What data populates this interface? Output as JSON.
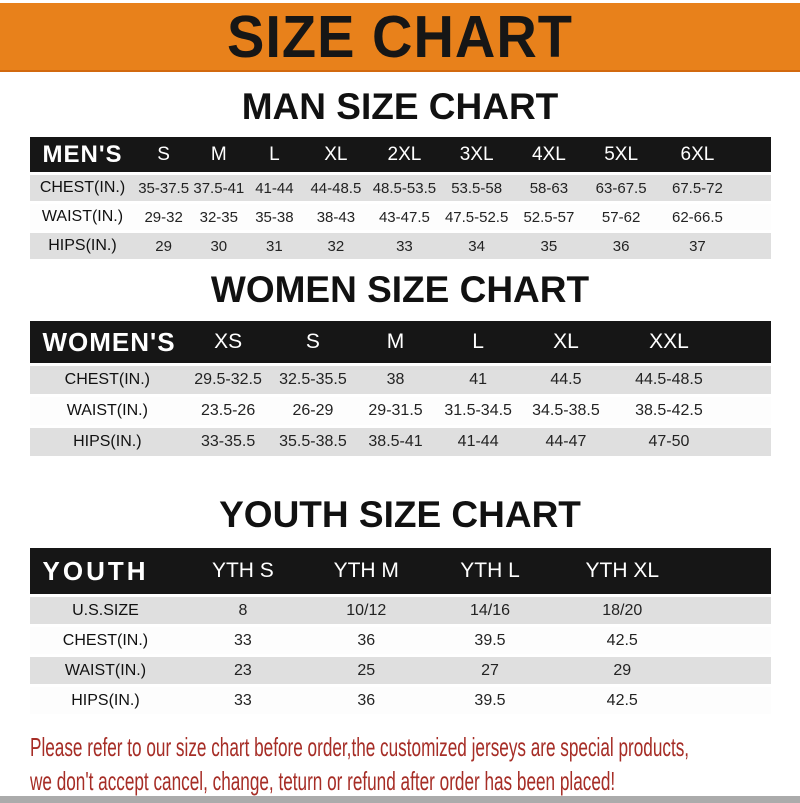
{
  "banner": {
    "title": "SIZE CHART"
  },
  "men": {
    "heading": "MAN SIZE CHART",
    "corner_label": "MEN'S",
    "columns": [
      "S",
      "M",
      "L",
      "XL",
      "2XL",
      "3XL",
      "4XL",
      "5XL",
      "6XL"
    ],
    "rows": [
      {
        "label": "CHEST(IN.)",
        "values": [
          "35-37.5",
          "37.5-41",
          "41-44",
          "44-48.5",
          "48.5-53.5",
          "53.5-58",
          "58-63",
          "63-67.5",
          "67.5-72"
        ]
      },
      {
        "label": "WAIST(IN.)",
        "values": [
          "29-32",
          "32-35",
          "35-38",
          "38-43",
          "43-47.5",
          "47.5-52.5",
          "52.5-57",
          "57-62",
          "62-66.5"
        ]
      },
      {
        "label": "HIPS(IN.)",
        "values": [
          "29",
          "30",
          "31",
          "32",
          "33",
          "34",
          "35",
          "36",
          "37"
        ]
      }
    ]
  },
  "women": {
    "heading": "WOMEN SIZE CHART",
    "corner_label": "WOMEN'S",
    "columns": [
      "XS",
      "S",
      "M",
      "L",
      "XL",
      "XXL"
    ],
    "rows": [
      {
        "label": "CHEST(IN.)",
        "values": [
          "29.5-32.5",
          "32.5-35.5",
          "38",
          "41",
          "44.5",
          "44.5-48.5"
        ]
      },
      {
        "label": "WAIST(IN.)",
        "values": [
          "23.5-26",
          "26-29",
          "29-31.5",
          "31.5-34.5",
          "34.5-38.5",
          "38.5-42.5"
        ]
      },
      {
        "label": "HIPS(IN.)",
        "values": [
          "33-35.5",
          "35.5-38.5",
          "38.5-41",
          "41-44",
          "44-47",
          "47-50"
        ]
      }
    ]
  },
  "youth": {
    "heading": "YOUTH SIZE CHART",
    "corner_label": "YOUTH",
    "columns": [
      "YTH S",
      "YTH M",
      "YTH L",
      "YTH XL"
    ],
    "rows": [
      {
        "label": "U.S.SIZE",
        "values": [
          "8",
          "10/12",
          "14/16",
          "18/20"
        ]
      },
      {
        "label": "CHEST(IN.)",
        "values": [
          "33",
          "36",
          "39.5",
          "42.5"
        ]
      },
      {
        "label": "WAIST(IN.)",
        "values": [
          "23",
          "25",
          "27",
          "29"
        ]
      },
      {
        "label": "HIPS(IN.)",
        "values": [
          "33",
          "36",
          "39.5",
          "42.5"
        ]
      }
    ]
  },
  "footer": {
    "line1": "Please refer to our size chart before order,the customized jerseys are special products,",
    "line2": "we don't accept cancel, change, teturn or refund after order has been placed!"
  },
  "colors": {
    "banner_orange": "#E8811B",
    "banner_text": "#161616",
    "header_bar_black": "#161616",
    "row_gray": "#DFDFDF",
    "footer_red": "#A62D26"
  }
}
